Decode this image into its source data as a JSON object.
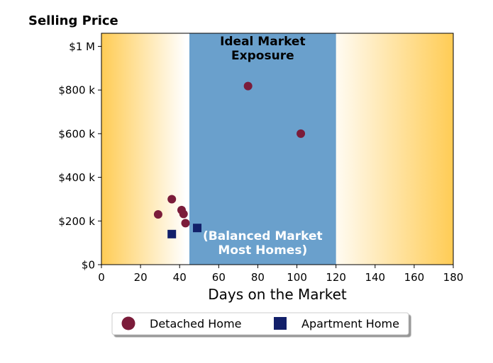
{
  "chart_data": {
    "type": "scatter",
    "title": "Selling Price",
    "xlabel": "Days on the Market",
    "ylabel": "",
    "xlim": [
      0,
      180
    ],
    "ylim": [
      0,
      1060000
    ],
    "x_ticks": [
      0,
      20,
      40,
      60,
      80,
      100,
      120,
      140,
      160,
      180
    ],
    "x_tick_labels": [
      "0",
      "20",
      "40",
      "60",
      "80",
      "100",
      "120",
      "140",
      "160",
      "180"
    ],
    "y_ticks": [
      0,
      200000,
      400000,
      600000,
      800000,
      1000000
    ],
    "y_tick_labels": [
      "$0",
      "$200 k",
      "$400 k",
      "$600 k",
      "$800 k",
      "$1 M"
    ],
    "grid": false,
    "legend_position": "bottom-outside",
    "background_gradient": {
      "edge_color": "#ffcc55",
      "center_color": "#ffffff"
    },
    "region": {
      "x_range": [
        45,
        120
      ],
      "color": "#6aa0cc",
      "top_label": [
        "Ideal Market",
        "Exposure"
      ],
      "bottom_label": [
        "(Balanced Market",
        "Most Homes)"
      ]
    },
    "series": [
      {
        "name": "Detached Home",
        "marker": "circle",
        "color": "#7b1c3a",
        "points": [
          [
            29,
            230000
          ],
          [
            36,
            300000
          ],
          [
            41,
            250000
          ],
          [
            42,
            232000
          ],
          [
            43,
            190000
          ],
          [
            75,
            818000
          ],
          [
            102,
            600000
          ]
        ]
      },
      {
        "name": "Apartment Home",
        "marker": "square",
        "color": "#12206a",
        "points": [
          [
            36,
            140000
          ],
          [
            49,
            168000
          ]
        ]
      }
    ]
  }
}
